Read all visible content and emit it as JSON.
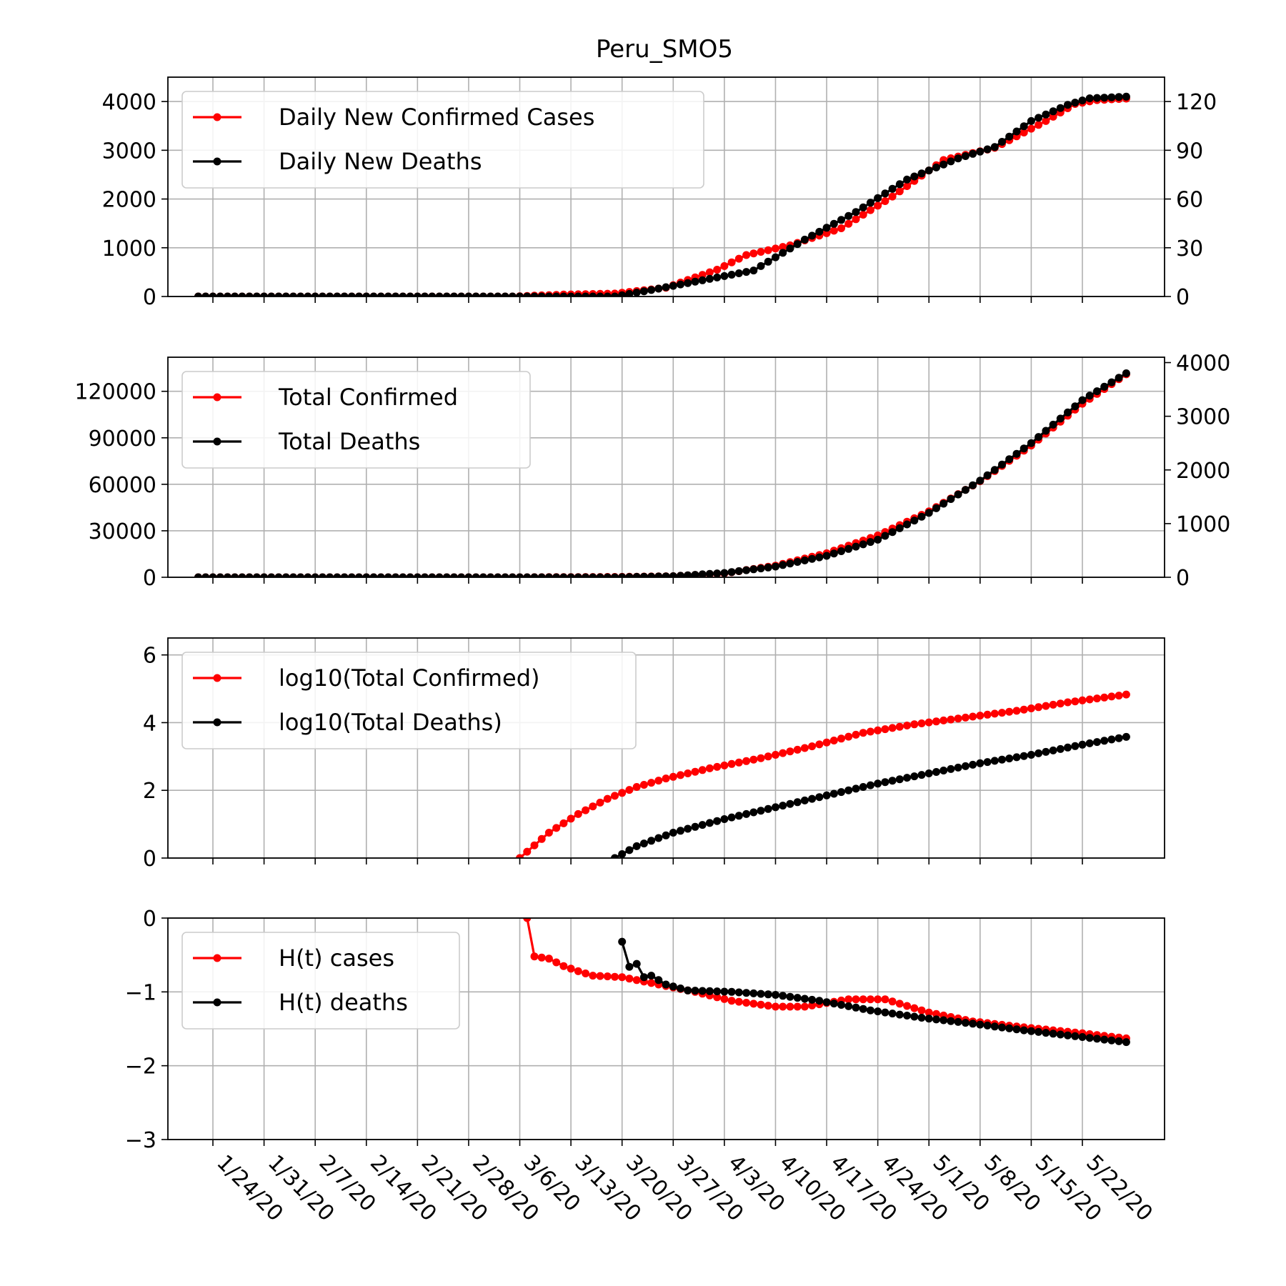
{
  "figure_title": "Peru_SMO5",
  "x_tick_labels": [
    "1/24/20",
    "1/31/20",
    "2/7/20",
    "2/14/20",
    "2/21/20",
    "2/28/20",
    "3/6/20",
    "3/13/20",
    "3/20/20",
    "3/27/20",
    "4/3/20",
    "4/10/20",
    "4/17/20",
    "4/24/20",
    "5/1/20",
    "5/8/20",
    "5/15/20",
    "5/22/20"
  ],
  "colors": {
    "cases": "#ff0000",
    "deaths": "#000000",
    "grid": "#b0b0b0"
  },
  "chart_data": [
    {
      "type": "line",
      "title": "Peru_SMO5",
      "legend": "upper-left",
      "grid": true,
      "x_start": "1/22/20",
      "x_end": "5/28/20",
      "y_left": {
        "ylim": [
          0,
          4500
        ],
        "ticks": [
          0,
          1000,
          2000,
          3000,
          4000
        ]
      },
      "y_right": {
        "ylim": [
          0,
          135
        ],
        "ticks": [
          0,
          30,
          60,
          90,
          120
        ]
      },
      "series": [
        {
          "name": "Daily New Confirmed Cases",
          "axis": "left",
          "keypoints": [
            [
              "1/22/20",
              0
            ],
            [
              "3/5/20",
              0
            ],
            [
              "3/12/20",
              40
            ],
            [
              "3/19/20",
              60
            ],
            [
              "3/26/20",
              180
            ],
            [
              "4/2/20",
              550
            ],
            [
              "4/6/20",
              850
            ],
            [
              "4/12/20",
              1050
            ],
            [
              "4/19/20",
              1400
            ],
            [
              "4/26/20",
              2050
            ],
            [
              "5/3/20",
              2800
            ],
            [
              "5/10/20",
              3050
            ],
            [
              "5/17/20",
              3600
            ],
            [
              "5/21/20",
              3950
            ],
            [
              "5/24/20",
              4030
            ],
            [
              "5/28/20",
              4060
            ]
          ]
        },
        {
          "name": "Daily New Deaths",
          "axis": "right",
          "keypoints": [
            [
              "1/22/20",
              0
            ],
            [
              "3/19/20",
              0
            ],
            [
              "3/24/20",
              4
            ],
            [
              "3/31/20",
              10
            ],
            [
              "4/7/20",
              16
            ],
            [
              "4/14/20",
              35
            ],
            [
              "4/21/20",
              52
            ],
            [
              "4/28/20",
              72
            ],
            [
              "5/5/20",
              85
            ],
            [
              "5/10/20",
              92
            ],
            [
              "5/15/20",
              108
            ],
            [
              "5/20/20",
              118
            ],
            [
              "5/23/20",
              122
            ],
            [
              "5/28/20",
              123
            ]
          ]
        }
      ]
    },
    {
      "type": "line",
      "legend": "upper-left",
      "grid": true,
      "x_start": "1/22/20",
      "x_end": "5/28/20",
      "y_left": {
        "ylim": [
          0,
          142000
        ],
        "ticks": [
          0,
          30000,
          60000,
          90000,
          120000
        ]
      },
      "y_right": {
        "ylim": [
          0,
          4100
        ],
        "ticks": [
          0,
          1000,
          2000,
          3000,
          4000
        ]
      },
      "series": [
        {
          "name": "Total Confirmed",
          "axis": "left",
          "keypoints": [
            [
              "1/22/20",
              0
            ],
            [
              "3/6/20",
              0
            ],
            [
              "3/20/20",
              260
            ],
            [
              "3/27/20",
              700
            ],
            [
              "4/3/20",
              2500
            ],
            [
              "4/10/20",
              7500
            ],
            [
              "4/17/20",
              15500
            ],
            [
              "4/24/20",
              27000
            ],
            [
              "5/1/20",
              42500
            ],
            [
              "5/8/20",
              62000
            ],
            [
              "5/15/20",
              85000
            ],
            [
              "5/22/20",
              112000
            ],
            [
              "5/28/20",
              131000
            ]
          ]
        },
        {
          "name": "Total Deaths",
          "axis": "right",
          "keypoints": [
            [
              "1/22/20",
              0
            ],
            [
              "3/19/20",
              0
            ],
            [
              "3/27/20",
              20
            ],
            [
              "4/3/20",
              80
            ],
            [
              "4/10/20",
              200
            ],
            [
              "4/17/20",
              400
            ],
            [
              "4/24/20",
              700
            ],
            [
              "5/1/20",
              1200
            ],
            [
              "5/8/20",
              1800
            ],
            [
              "5/15/20",
              2500
            ],
            [
              "5/22/20",
              3300
            ],
            [
              "5/28/20",
              3800
            ]
          ]
        }
      ]
    },
    {
      "type": "line",
      "legend": "upper-left",
      "grid": true,
      "x_start": "1/22/20",
      "x_end": "5/28/20",
      "y_left": {
        "ylim": [
          0,
          6.5
        ],
        "ticks": [
          0,
          2,
          4,
          6
        ]
      },
      "series": [
        {
          "name": "log10(Total Confirmed)",
          "axis": "left",
          "keypoints": [
            [
              "3/6/20",
              0
            ],
            [
              "3/10/20",
              0.75
            ],
            [
              "3/14/20",
              1.3
            ],
            [
              "3/18/20",
              1.75
            ],
            [
              "3/22/20",
              2.1
            ],
            [
              "3/26/20",
              2.35
            ],
            [
              "4/1/20",
              2.65
            ],
            [
              "4/8/20",
              2.95
            ],
            [
              "4/15/20",
              3.3
            ],
            [
              "4/22/20",
              3.7
            ],
            [
              "4/29/20",
              3.95
            ],
            [
              "5/6/20",
              4.15
            ],
            [
              "5/13/20",
              4.35
            ],
            [
              "5/20/20",
              4.6
            ],
            [
              "5/27/20",
              4.8
            ],
            [
              "5/28/20",
              4.83
            ]
          ]
        },
        {
          "name": "log10(Total Deaths)",
          "axis": "left",
          "keypoints": [
            [
              "3/19/20",
              0
            ],
            [
              "3/22/20",
              0.35
            ],
            [
              "3/27/20",
              0.75
            ],
            [
              "4/3/20",
              1.15
            ],
            [
              "4/10/20",
              1.5
            ],
            [
              "4/17/20",
              1.85
            ],
            [
              "4/24/20",
              2.2
            ],
            [
              "5/1/20",
              2.5
            ],
            [
              "5/8/20",
              2.8
            ],
            [
              "5/15/20",
              3.05
            ],
            [
              "5/22/20",
              3.35
            ],
            [
              "5/28/20",
              3.58
            ]
          ]
        }
      ]
    },
    {
      "type": "line",
      "legend": "upper-left",
      "grid": true,
      "x_start": "1/22/20",
      "x_end": "5/28/20",
      "y_left": {
        "ylim": [
          -3,
          0
        ],
        "ticks": [
          0,
          -1,
          -2,
          -3
        ],
        "tick_labels": [
          "0",
          "−1",
          "−2",
          "−3"
        ]
      },
      "series": [
        {
          "name": "H(t) cases",
          "axis": "left",
          "keypoints": [
            [
              "3/7/20",
              0
            ],
            [
              "3/8/20",
              -0.52
            ],
            [
              "3/10/20",
              -0.55
            ],
            [
              "3/12/20",
              -0.65
            ],
            [
              "3/14/20",
              -0.72
            ],
            [
              "3/16/20",
              -0.78
            ],
            [
              "3/20/20",
              -0.8
            ],
            [
              "3/24/20",
              -0.88
            ],
            [
              "3/30/20",
              -1.0
            ],
            [
              "4/4/20",
              -1.12
            ],
            [
              "4/10/20",
              -1.2
            ],
            [
              "4/14/20",
              -1.2
            ],
            [
              "4/20/20",
              -1.1
            ],
            [
              "4/25/20",
              -1.1
            ],
            [
              "5/1/20",
              -1.28
            ],
            [
              "5/7/20",
              -1.4
            ],
            [
              "5/14/20",
              -1.48
            ],
            [
              "5/21/20",
              -1.55
            ],
            [
              "5/28/20",
              -1.63
            ]
          ]
        },
        {
          "name": "H(t) deaths",
          "axis": "left",
          "keypoints": [
            [
              "3/20/20",
              -0.32
            ],
            [
              "3/21/20",
              -0.66
            ],
            [
              "3/22/20",
              -0.62
            ],
            [
              "3/23/20",
              -0.8
            ],
            [
              "3/24/20",
              -0.78
            ],
            [
              "3/26/20",
              -0.9
            ],
            [
              "3/29/20",
              -0.98
            ],
            [
              "4/4/20",
              -1.0
            ],
            [
              "4/10/20",
              -1.04
            ],
            [
              "4/16/20",
              -1.12
            ],
            [
              "4/23/20",
              -1.25
            ],
            [
              "4/30/20",
              -1.35
            ],
            [
              "5/7/20",
              -1.43
            ],
            [
              "5/14/20",
              -1.52
            ],
            [
              "5/21/20",
              -1.6
            ],
            [
              "5/28/20",
              -1.68
            ]
          ]
        }
      ]
    }
  ]
}
